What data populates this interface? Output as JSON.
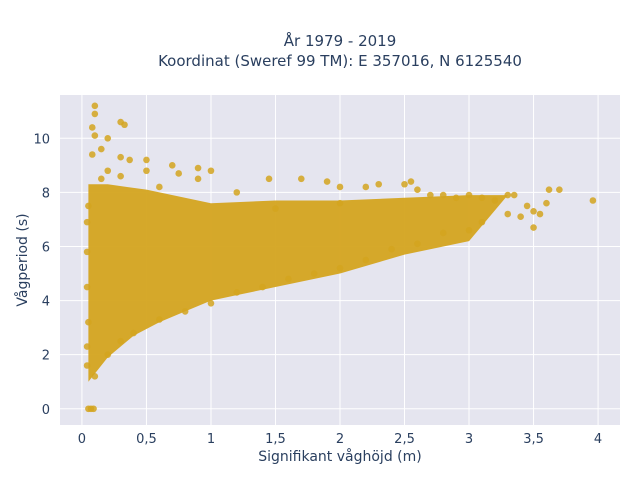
{
  "chart_data": {
    "type": "scatter",
    "title_line1": "År 1979 - 2019",
    "title_line2": "Koordinat (Sweref 99 TM): E 357016, N 6125540",
    "xlabel": "Signifikant våghöjd (m)",
    "ylabel": "Vågperiod (s)",
    "xlim": [
      -0.17,
      4.17
    ],
    "ylim": [
      -0.6,
      11.6
    ],
    "x_ticks": [
      0,
      0.5,
      1,
      1.5,
      2,
      2.5,
      3,
      3.5,
      4
    ],
    "x_tick_labels": [
      "0",
      "0,5",
      "1",
      "1,5",
      "2",
      "2,5",
      "3",
      "3,5",
      "4"
    ],
    "y_ticks": [
      0,
      2,
      4,
      6,
      8,
      10
    ],
    "y_tick_labels": [
      "0",
      "2",
      "4",
      "6",
      "8",
      "10"
    ],
    "grid": true,
    "marker_color": "#d4a41f",
    "plot_background": "#e5e5ef",
    "band_lower": [
      [
        0.05,
        1.0
      ],
      [
        0.1,
        1.3
      ],
      [
        0.2,
        1.9
      ],
      [
        0.4,
        2.7
      ],
      [
        0.6,
        3.2
      ],
      [
        0.8,
        3.6
      ],
      [
        1.0,
        4.0
      ],
      [
        1.2,
        4.2
      ],
      [
        1.5,
        4.5
      ],
      [
        2.0,
        5.0
      ],
      [
        2.5,
        5.7
      ],
      [
        3.0,
        6.2
      ]
    ],
    "band_upper": [
      [
        0.05,
        8.3
      ],
      [
        0.2,
        8.3
      ],
      [
        0.5,
        8.1
      ],
      [
        1.0,
        7.6
      ],
      [
        1.5,
        7.7
      ],
      [
        2.0,
        7.7
      ],
      [
        2.5,
        7.8
      ],
      [
        3.0,
        7.9
      ],
      [
        3.3,
        7.9
      ]
    ],
    "points": [
      [
        0.1,
        11.2
      ],
      [
        0.1,
        10.9
      ],
      [
        0.1,
        10.1
      ],
      [
        0.08,
        10.4
      ],
      [
        0.2,
        10.0
      ],
      [
        0.3,
        10.6
      ],
      [
        0.33,
        10.5
      ],
      [
        0.08,
        9.4
      ],
      [
        0.15,
        9.6
      ],
      [
        0.3,
        9.3
      ],
      [
        0.37,
        9.2
      ],
      [
        0.5,
        9.2
      ],
      [
        0.7,
        9.0
      ],
      [
        0.2,
        8.8
      ],
      [
        0.5,
        8.8
      ],
      [
        0.9,
        8.9
      ],
      [
        1.0,
        8.8
      ],
      [
        0.9,
        8.5
      ],
      [
        1.2,
        8.0
      ],
      [
        1.45,
        8.5
      ],
      [
        1.7,
        8.5
      ],
      [
        1.9,
        8.4
      ],
      [
        2.0,
        8.2
      ],
      [
        2.2,
        8.2
      ],
      [
        2.3,
        8.3
      ],
      [
        2.5,
        8.3
      ],
      [
        2.55,
        8.4
      ],
      [
        2.6,
        8.1
      ],
      [
        2.7,
        7.9
      ],
      [
        2.8,
        7.9
      ],
      [
        2.9,
        7.8
      ],
      [
        3.0,
        7.9
      ],
      [
        3.1,
        7.8
      ],
      [
        3.2,
        7.7
      ],
      [
        3.3,
        7.9
      ],
      [
        3.35,
        7.9
      ],
      [
        3.45,
        7.5
      ],
      [
        3.5,
        7.3
      ],
      [
        3.55,
        7.2
      ],
      [
        3.6,
        7.6
      ],
      [
        3.62,
        8.1
      ],
      [
        3.7,
        8.1
      ],
      [
        3.96,
        7.7
      ],
      [
        3.3,
        7.2
      ],
      [
        3.4,
        7.1
      ],
      [
        3.1,
        6.9
      ],
      [
        3.5,
        6.7
      ],
      [
        3.0,
        6.6
      ],
      [
        2.8,
        6.5
      ],
      [
        2.6,
        6.1
      ],
      [
        2.4,
        5.9
      ],
      [
        2.2,
        5.5
      ],
      [
        2.0,
        5.2
      ],
      [
        1.8,
        5.0
      ],
      [
        1.6,
        4.8
      ],
      [
        1.4,
        4.5
      ],
      [
        1.2,
        4.3
      ],
      [
        1.0,
        3.9
      ],
      [
        0.8,
        3.6
      ],
      [
        0.6,
        3.3
      ],
      [
        0.4,
        2.8
      ],
      [
        0.3,
        2.5
      ],
      [
        0.2,
        2.0
      ],
      [
        0.1,
        1.2
      ],
      [
        0.05,
        0.0
      ],
      [
        0.07,
        0.0
      ],
      [
        0.09,
        0.0
      ],
      [
        0.04,
        1.6
      ],
      [
        0.04,
        2.3
      ],
      [
        0.05,
        3.2
      ],
      [
        0.04,
        4.5
      ],
      [
        0.04,
        5.8
      ],
      [
        0.04,
        6.9
      ],
      [
        0.05,
        7.5
      ],
      [
        0.15,
        8.5
      ],
      [
        0.3,
        8.6
      ],
      [
        0.6,
        8.2
      ],
      [
        0.75,
        8.7
      ],
      [
        1.5,
        7.4
      ],
      [
        2.0,
        7.6
      ]
    ]
  }
}
